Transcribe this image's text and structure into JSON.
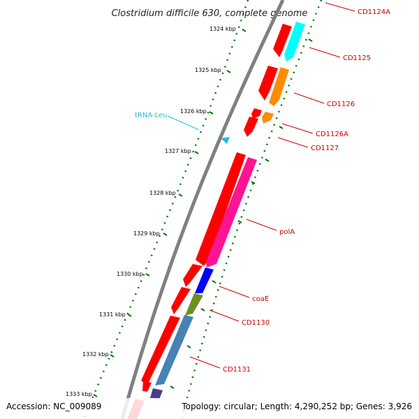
{
  "title": "Clostridium difficile 630, complete genome",
  "footer": {
    "accession": "Accession: NC_009089",
    "topology": "Topology: circular; Length: 4,290,252 bp; Genes: 3,926"
  },
  "ticks": [
    "1324 kbp",
    "1325 kbp",
    "1326 kbp",
    "1327 kbp",
    "1328 kbp",
    "1329 kbp",
    "1330 kbp",
    "1331 kbp",
    "1332 kbp",
    "1333 kbp"
  ],
  "genes": [
    {
      "id": "cd1124a",
      "label": "CD1124A",
      "color": "#ff0000",
      "icon": "gene-arrow"
    },
    {
      "id": "cd1125",
      "label": "CD1125",
      "color": "#00ffff",
      "icon": "gene-arrow"
    },
    {
      "id": "cd1126",
      "label": "CD1126",
      "color": "#ff8c00",
      "icon": "gene-arrow"
    },
    {
      "id": "cd1126a",
      "label": "CD1126A",
      "color": "#ff8c00",
      "icon": "gene-arrow"
    },
    {
      "id": "cd1127",
      "label": "CD1127",
      "color": "#ff0000",
      "icon": "gene-arrow"
    },
    {
      "id": "pola",
      "label": "polA",
      "color": "#ff1493",
      "icon": "gene-arrow"
    },
    {
      "id": "coae",
      "label": "coaE",
      "color": "#0000ff",
      "icon": "gene-arrow"
    },
    {
      "id": "cd1130",
      "label": "CD1130",
      "color": "#6b8e23",
      "icon": "gene-arrow"
    },
    {
      "id": "cd1131",
      "label": "CD1131",
      "color": "#4682b4",
      "icon": "gene-arrow"
    }
  ],
  "trna": {
    "label": "tRNA-Leu",
    "color": "#22bbdd",
    "icon": "trna-triangle"
  },
  "colors": {
    "backbone": "#808080",
    "tick_green": "#007700",
    "orf_red": "#ff0000",
    "purple": "#483d8b"
  }
}
